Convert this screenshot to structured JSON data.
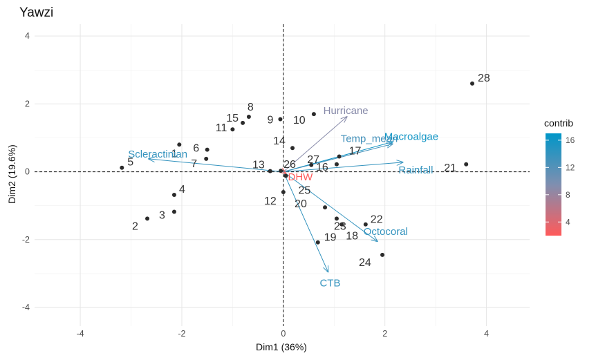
{
  "chart_data": {
    "type": "scatter",
    "title": "Yawzi",
    "xlabel": "Dim1 (36%)",
    "ylabel": "Dim2 (19.6%)",
    "xlim": [
      -4.9,
      4.85
    ],
    "ylim": [
      -4.55,
      4.35
    ],
    "x_ticks": [
      -4,
      -2,
      0,
      2,
      4
    ],
    "y_ticks": [
      -4,
      -2,
      0,
      2,
      4
    ],
    "grid": true,
    "reference_lines": {
      "x": 0,
      "y": 0,
      "style": "dashed"
    },
    "points": [
      {
        "label": "28",
        "x": 3.72,
        "y": 2.6
      },
      {
        "label": "8",
        "x": -0.68,
        "y": 1.62
      },
      {
        "label": "15",
        "x": -0.8,
        "y": 1.44
      },
      {
        "label": "9",
        "x": -0.06,
        "y": 1.55
      },
      {
        "label": "10",
        "x": 0.6,
        "y": 1.7
      },
      {
        "label": "11",
        "x": -1.0,
        "y": 1.25
      },
      {
        "label": "6",
        "x": -2.05,
        "y": 0.8
      },
      {
        "label": "1",
        "x": -1.5,
        "y": 0.65
      },
      {
        "label": "7",
        "x": -1.52,
        "y": 0.38
      },
      {
        "label": "14",
        "x": 0.18,
        "y": 0.7
      },
      {
        "label": "27",
        "x": 0.55,
        "y": 0.2
      },
      {
        "label": "17",
        "x": 1.1,
        "y": 0.45
      },
      {
        "label": "16",
        "x": 1.05,
        "y": 0.22
      },
      {
        "label": "21",
        "x": 3.6,
        "y": 0.22
      },
      {
        "label": "5",
        "x": -3.18,
        "y": 0.12
      },
      {
        "label": "13",
        "x": -0.26,
        "y": 0.02
      },
      {
        "label": "26",
        "x": -0.05,
        "y": 0.03
      },
      {
        "label": "4",
        "x": -2.15,
        "y": -0.68
      },
      {
        "label": "25",
        "x": 0.05,
        "y": -0.12
      },
      {
        "label": "12",
        "x": 0.0,
        "y": -0.6
      },
      {
        "label": "2",
        "x": -2.68,
        "y": -1.38
      },
      {
        "label": "3",
        "x": -2.15,
        "y": -1.18
      },
      {
        "label": "20",
        "x": 0.82,
        "y": -1.05
      },
      {
        "label": "23",
        "x": 1.05,
        "y": -1.38
      },
      {
        "label": "18",
        "x": 1.15,
        "y": -1.55
      },
      {
        "label": "22",
        "x": 1.62,
        "y": -1.55
      },
      {
        "label": "19",
        "x": 0.68,
        "y": -2.08
      },
      {
        "label": "24",
        "x": 1.95,
        "y": -2.45
      }
    ],
    "variables": [
      {
        "name": "Hurricane",
        "x": 1.25,
        "y": 1.62,
        "contrib": 9
      },
      {
        "name": "Macroalgae",
        "x": 2.15,
        "y": 0.88,
        "contrib": 16
      },
      {
        "name": "Temp_mean",
        "x": 2.15,
        "y": 0.82,
        "contrib": 13
      },
      {
        "name": "Rainfall",
        "x": 2.35,
        "y": 0.28,
        "contrib": 14
      },
      {
        "name": "Scleractinian",
        "x": -2.65,
        "y": 0.38,
        "contrib": 14
      },
      {
        "name": "Octocoral",
        "x": 1.85,
        "y": -2.05,
        "contrib": 14
      },
      {
        "name": "CTB",
        "x": 0.88,
        "y": -2.95,
        "contrib": 14
      },
      {
        "name": "DHW",
        "x": 0.05,
        "y": -0.05,
        "contrib": 2
      }
    ],
    "legend": {
      "title": "contrib",
      "position": "right",
      "ticks": [
        4,
        8,
        12,
        16
      ],
      "range": [
        2,
        17
      ],
      "low_color": "#ff5a5a",
      "mid_color": "#7f8fb0",
      "high_color": "#0096c8"
    }
  }
}
